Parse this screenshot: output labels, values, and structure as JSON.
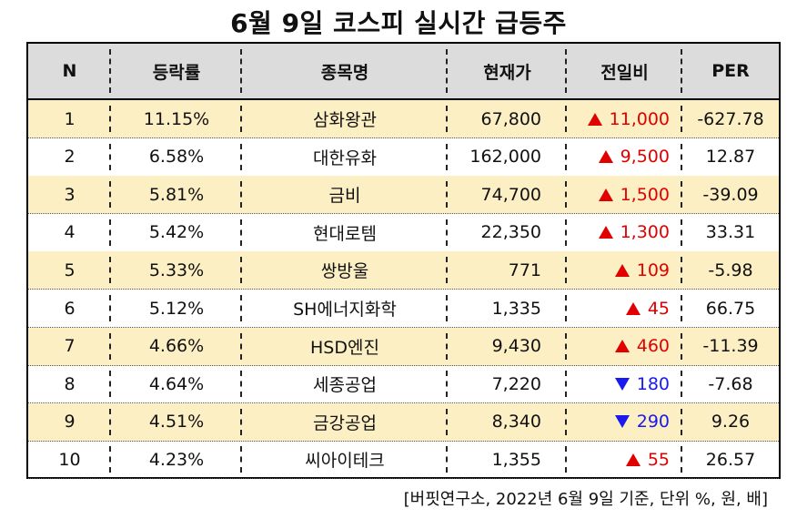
{
  "title": "6월 9일 코스피 실시간 급등주",
  "headers": [
    "N",
    "등락률",
    "종목명",
    "현재가",
    "전일비",
    "PER"
  ],
  "rows": [
    {
      "n": "1",
      "rate": "11.15%",
      "name": "삼화왕관",
      "price": "67,800",
      "dir": "up",
      "change": "11,000",
      "per": "-627.78"
    },
    {
      "n": "2",
      "rate": "6.58%",
      "name": "대한유화",
      "price": "162,000",
      "dir": "up",
      "change": "9,500",
      "per": "12.87"
    },
    {
      "n": "3",
      "rate": "5.81%",
      "name": "금비",
      "price": "74,700",
      "dir": "up",
      "change": "1,500",
      "per": "-39.09"
    },
    {
      "n": "4",
      "rate": "5.42%",
      "name": "현대로템",
      "price": "22,350",
      "dir": "up",
      "change": "1,300",
      "per": "33.31"
    },
    {
      "n": "5",
      "rate": "5.33%",
      "name": "쌍방울",
      "price": "771",
      "dir": "up",
      "change": "109",
      "per": "-5.98"
    },
    {
      "n": "6",
      "rate": "5.12%",
      "name": "SH에너지화학",
      "price": "1,335",
      "dir": "up",
      "change": "45",
      "per": "66.75"
    },
    {
      "n": "7",
      "rate": "4.66%",
      "name": "HSD엔진",
      "price": "9,430",
      "dir": "up",
      "change": "460",
      "per": "-11.39"
    },
    {
      "n": "8",
      "rate": "4.64%",
      "name": "세종공업",
      "price": "7,220",
      "dir": "down",
      "change": "180",
      "per": "-7.68"
    },
    {
      "n": "9",
      "rate": "4.51%",
      "name": "금강공업",
      "price": "8,340",
      "dir": "down",
      "change": "290",
      "per": "9.26"
    },
    {
      "n": "10",
      "rate": "4.23%",
      "name": "씨아이테크",
      "price": "1,355",
      "dir": "up",
      "change": "55",
      "per": "26.57"
    }
  ],
  "colors": {
    "up": "#e00000",
    "down": "#1a1aee",
    "shade": "#fdefc4",
    "header_bg": "#dcdcdc"
  },
  "source": "[버핏연구소, 2022년 6월 9일 기준, 단위 %, 원, 배]"
}
